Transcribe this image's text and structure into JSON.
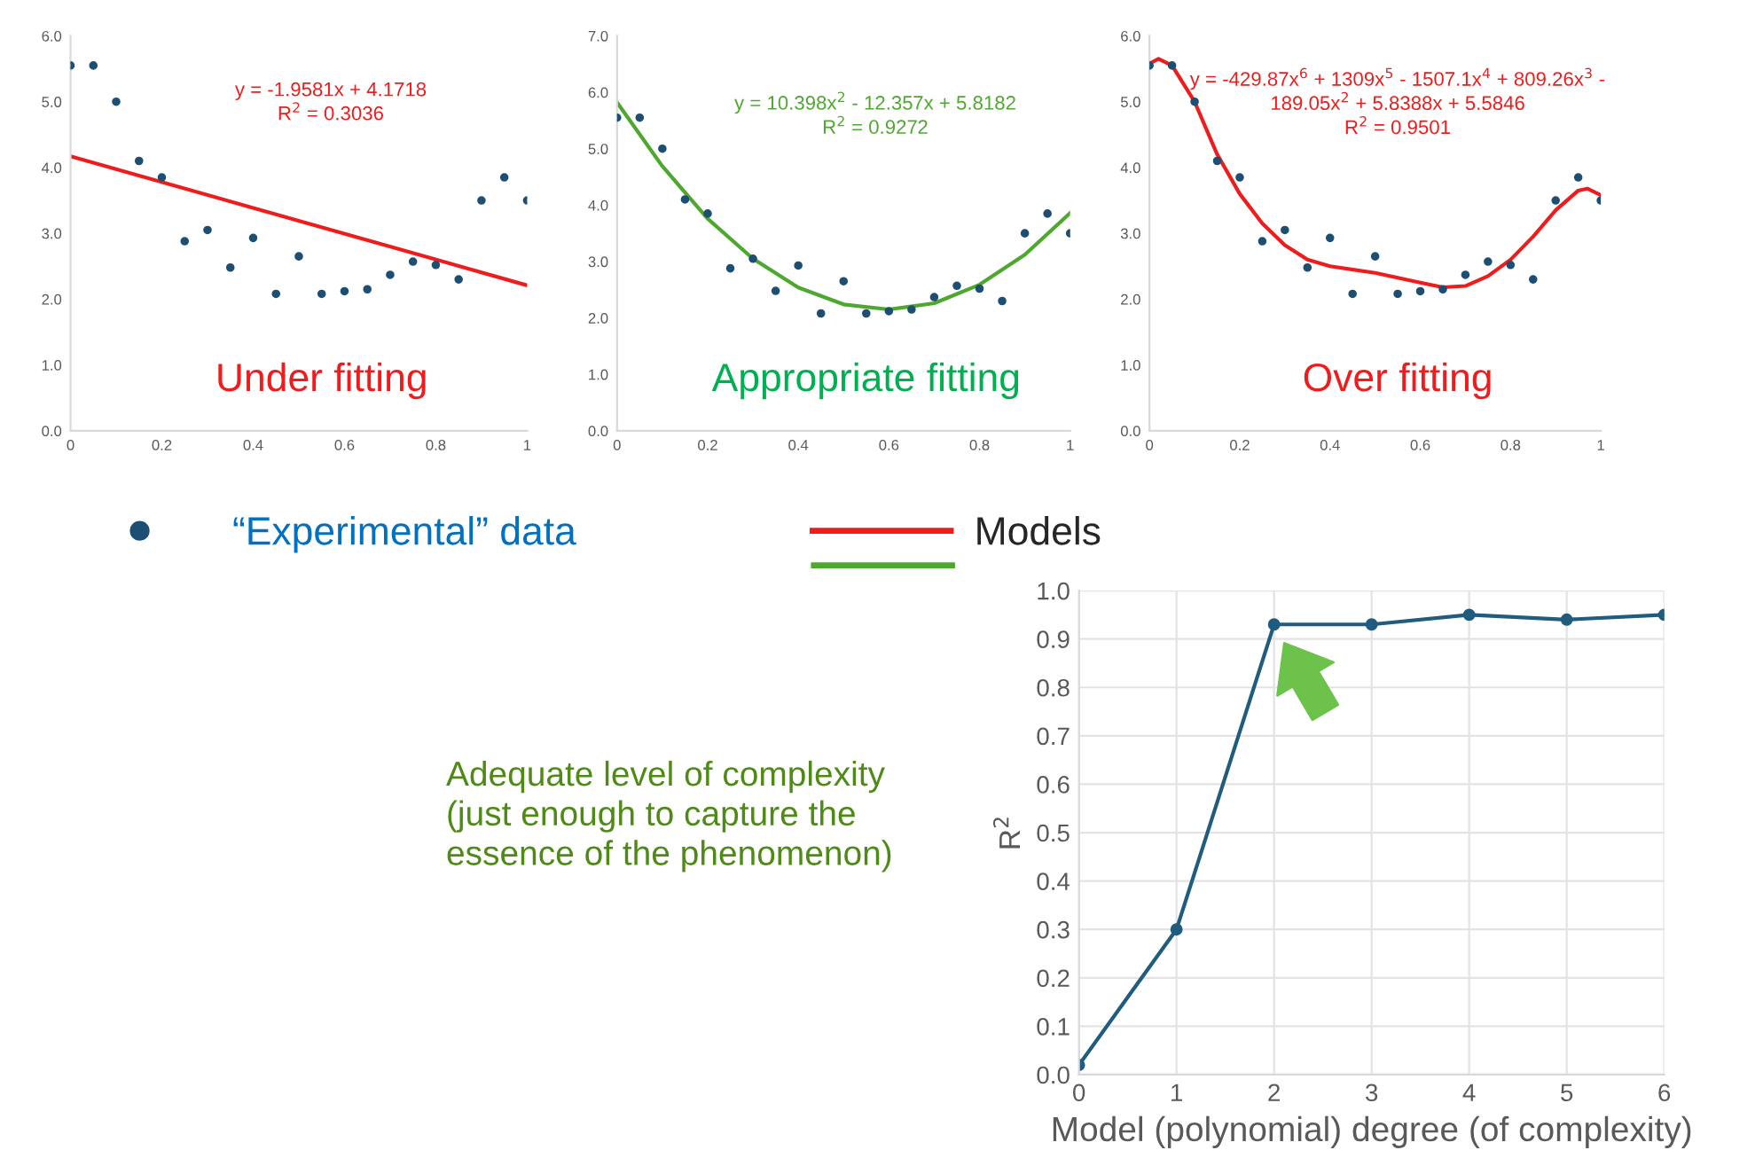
{
  "chart_data": [
    {
      "type": "scatter",
      "xlim": [
        0,
        1
      ],
      "xticks": [
        0,
        0.2,
        0.4,
        0.6,
        0.8,
        1
      ],
      "ylim": [
        0,
        6
      ],
      "yticks": [
        {
          "value": 0,
          "label": "0.0"
        },
        {
          "value": 1,
          "label": "1.0"
        },
        {
          "value": 2,
          "label": "2.0"
        },
        {
          "value": 3,
          "label": "3.0"
        },
        {
          "value": 4,
          "label": "4.0"
        },
        {
          "value": 5,
          "label": "5.0"
        },
        {
          "value": 6,
          "label": "6.0"
        }
      ],
      "grid": false,
      "legend": "bottom",
      "annotations": [
        "y = -1.9581x + 4.1718\nR$^{2}$ = 0.3036",
        "Under fitting"
      ],
      "series": [
        {
          "type": "scatter",
          "name": "“Experimental” data",
          "marker": "circle",
          "color": "#1d4f73",
          "x": [
            0,
            0.05,
            0.1,
            0.15,
            0.2,
            0.25,
            0.3,
            0.35,
            0.4,
            0.45,
            0.5,
            0.55,
            0.6,
            0.65,
            0.7,
            0.75,
            0.8,
            0.85,
            0.9,
            0.95,
            1
          ],
          "values": [
            5.55,
            5.55,
            5.0,
            4.1,
            3.85,
            2.88,
            3.05,
            2.48,
            2.93,
            2.08,
            2.65,
            2.08,
            2.12,
            2.15,
            2.37,
            2.57,
            2.52,
            2.3,
            3.5,
            3.85,
            3.5
          ]
        },
        {
          "type": "line",
          "name": "Models",
          "color": "#ee1c1c",
          "x": [
            0,
            1
          ],
          "values": [
            4.17,
            2.21
          ]
        }
      ]
    },
    {
      "type": "scatter",
      "xlim": [
        0,
        1
      ],
      "xticks": [
        0,
        0.2,
        0.4,
        0.6,
        0.8,
        1
      ],
      "ylim": [
        0,
        7
      ],
      "yticks": [
        {
          "value": 0,
          "label": "0.0"
        },
        {
          "value": 1,
          "label": "1.0"
        },
        {
          "value": 2,
          "label": "2.0"
        },
        {
          "value": 3,
          "label": "3.0"
        },
        {
          "value": 4,
          "label": "4.0"
        },
        {
          "value": 5,
          "label": "5.0"
        },
        {
          "value": 6,
          "label": "6.0"
        },
        {
          "value": 7,
          "label": "7.0"
        }
      ],
      "grid": false,
      "annotations": [
        "y = 10.398x$^{2}$ - 12.357x + 5.8182\nR$^{2}$ = 0.9272",
        "Appropriate fitting"
      ],
      "series": [
        {
          "type": "scatter",
          "marker": "circle",
          "color": "#1d4f73",
          "x": [
            0,
            0.05,
            0.1,
            0.15,
            0.2,
            0.25,
            0.3,
            0.35,
            0.4,
            0.45,
            0.5,
            0.55,
            0.6,
            0.65,
            0.7,
            0.75,
            0.8,
            0.85,
            0.9,
            0.95,
            1
          ],
          "values": [
            5.55,
            5.55,
            5.0,
            4.1,
            3.85,
            2.88,
            3.05,
            2.48,
            2.93,
            2.08,
            2.65,
            2.08,
            2.12,
            2.15,
            2.37,
            2.57,
            2.52,
            2.3,
            3.5,
            3.85,
            3.5
          ]
        },
        {
          "type": "line",
          "color": "#4ea72e",
          "x": [
            0,
            0.1,
            0.2,
            0.3,
            0.4,
            0.5,
            0.6,
            0.7,
            0.8,
            0.9,
            1
          ],
          "values": [
            5.82,
            4.69,
            3.76,
            3.05,
            2.54,
            2.24,
            2.15,
            2.26,
            2.59,
            3.12,
            3.86
          ]
        }
      ]
    },
    {
      "type": "scatter",
      "xlim": [
        0,
        1
      ],
      "xticks": [
        0,
        0.2,
        0.4,
        0.6,
        0.8,
        1
      ],
      "ylim": [
        0,
        6
      ],
      "yticks": [
        {
          "value": 0,
          "label": "0.0"
        },
        {
          "value": 1,
          "label": "1.0"
        },
        {
          "value": 2,
          "label": "2.0"
        },
        {
          "value": 3,
          "label": "3.0"
        },
        {
          "value": 4,
          "label": "4.0"
        },
        {
          "value": 5,
          "label": "5.0"
        },
        {
          "value": 6,
          "label": "6.0"
        }
      ],
      "grid": false,
      "annotations": [
        "y = -429.87x$^{6}$ + 1309x$^{5}$ - 1507.1x$^{4}$ + 809.26x$^{3}$ -\n189.05x$^{2}$ + 5.8388x + 5.5846\nR$^{2}$ = 0.9501",
        "Over fitting"
      ],
      "series": [
        {
          "type": "scatter",
          "marker": "circle",
          "color": "#1d4f73",
          "x": [
            0,
            0.05,
            0.1,
            0.15,
            0.2,
            0.25,
            0.3,
            0.35,
            0.4,
            0.45,
            0.5,
            0.55,
            0.6,
            0.65,
            0.7,
            0.75,
            0.8,
            0.85,
            0.9,
            0.95,
            1
          ],
          "values": [
            5.55,
            5.55,
            5.0,
            4.1,
            3.85,
            2.88,
            3.05,
            2.48,
            2.93,
            2.08,
            2.65,
            2.08,
            2.12,
            2.15,
            2.37,
            2.57,
            2.52,
            2.3,
            3.5,
            3.85,
            3.5
          ]
        },
        {
          "type": "line",
          "color": "#ee1c1c",
          "x": [
            0,
            0.02,
            0.05,
            0.1,
            0.15,
            0.2,
            0.25,
            0.3,
            0.35,
            0.4,
            0.5,
            0.6,
            0.65,
            0.7,
            0.75,
            0.8,
            0.85,
            0.9,
            0.95,
            0.97,
            1
          ],
          "values": [
            5.58,
            5.65,
            5.55,
            5.0,
            4.2,
            3.6,
            3.15,
            2.82,
            2.6,
            2.5,
            2.4,
            2.25,
            2.18,
            2.2,
            2.35,
            2.6,
            2.95,
            3.35,
            3.65,
            3.68,
            3.58
          ]
        }
      ]
    },
    {
      "type": "line",
      "xlabel": "Model (polynomial) degree (of complexity)",
      "ylabel": "R$^{2}$",
      "xlim": [
        0,
        6
      ],
      "xticks": [
        0,
        1,
        2,
        3,
        4,
        5,
        6
      ],
      "ylim": [
        0,
        1
      ],
      "yticks": [
        {
          "value": 0,
          "label": "0.0"
        },
        {
          "value": 0.1,
          "label": "0.1"
        },
        {
          "value": 0.2,
          "label": "0.2"
        },
        {
          "value": 0.3,
          "label": "0.3"
        },
        {
          "value": 0.4,
          "label": "0.4"
        },
        {
          "value": 0.5,
          "label": "0.5"
        },
        {
          "value": 0.6,
          "label": "0.6"
        },
        {
          "value": 0.7,
          "label": "0.7"
        },
        {
          "value": 0.8,
          "label": "0.8"
        },
        {
          "value": 0.9,
          "label": "0.9"
        },
        {
          "value": 1,
          "label": "1.0"
        }
      ],
      "grid": true,
      "marker": "circle",
      "line_style": "solid",
      "annotations": [
        "Adequate level of complexity\n(just enough to capture the\nessence of the phenomenon)"
      ],
      "series": [
        {
          "color": "#1f5c7e",
          "x": [
            0,
            1,
            2,
            3,
            4,
            5,
            6
          ],
          "values": [
            0.02,
            0.3,
            0.93,
            0.93,
            0.95,
            0.94,
            0.95
          ]
        }
      ]
    }
  ]
}
